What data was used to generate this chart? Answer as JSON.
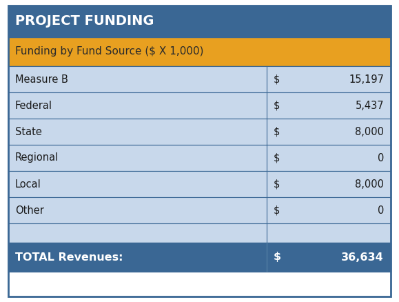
{
  "title": "PROJECT FUNDING",
  "subtitle": "Funding by Fund Source ($ X 1,000)",
  "rows": [
    {
      "label": "Measure B",
      "dollar": "$",
      "value": "15,197"
    },
    {
      "label": "Federal",
      "dollar": "$",
      "value": "5,437"
    },
    {
      "label": "State",
      "dollar": "$",
      "value": "8,000"
    },
    {
      "label": "Regional",
      "dollar": "$",
      "value": "0"
    },
    {
      "label": "Local",
      "dollar": "$",
      "value": "8,000"
    },
    {
      "label": "Other",
      "dollar": "$",
      "value": "0"
    }
  ],
  "total_label": "TOTAL Revenues:",
  "total_dollar": "$",
  "total_value": "36,634",
  "color_header_bg": "#3A6794",
  "color_header_text": "#FFFFFF",
  "color_subtitle_bg": "#E8A020",
  "color_subtitle_text": "#2B2B2B",
  "color_row_bg": "#C8D8EB",
  "color_row_text": "#1A1A1A",
  "color_total_bg": "#3A6794",
  "color_total_text": "#FFFFFF",
  "color_spacer_bg": "#C8D8EB",
  "color_border": "#3A6794",
  "color_outer_border": "#3A6794",
  "color_white_gap": "#FFFFFF"
}
